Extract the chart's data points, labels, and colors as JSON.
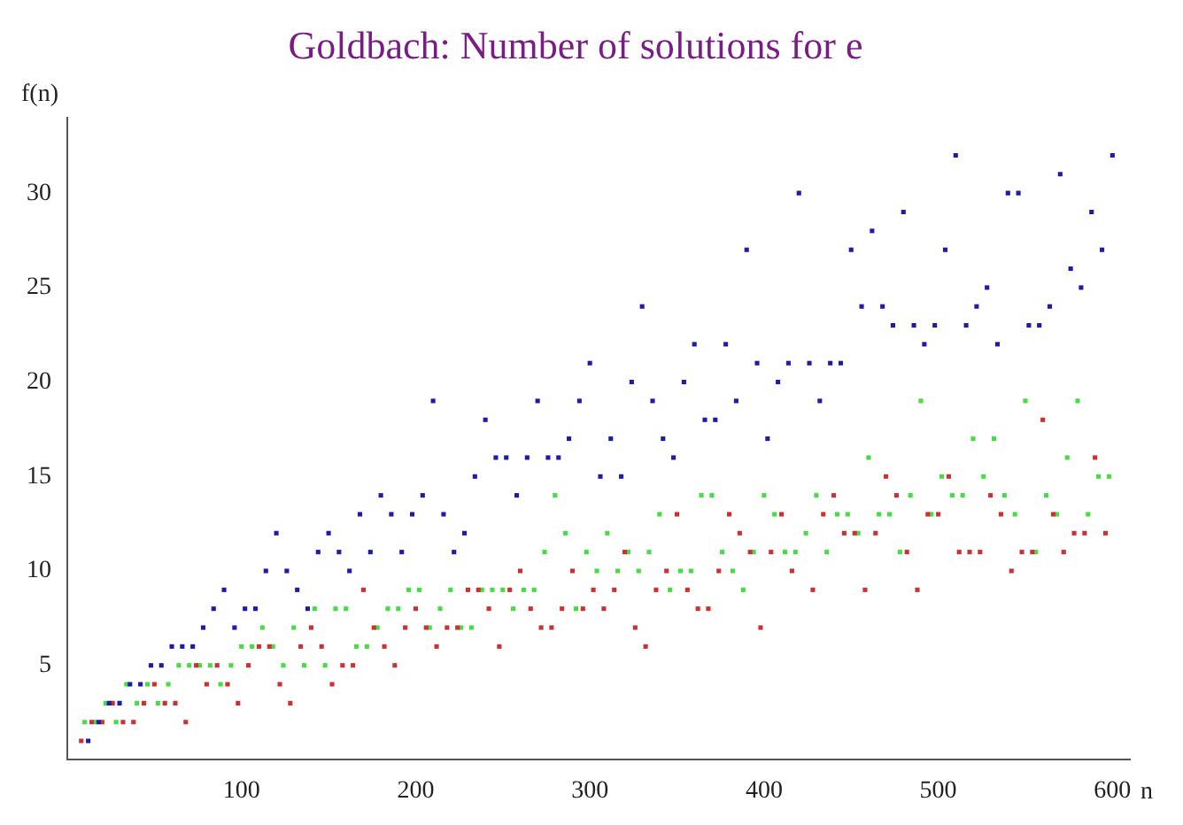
{
  "chart_data": {
    "type": "scatter",
    "title": "Goldbach: Number of solutions for e",
    "xlabel": "n",
    "ylabel": "f(n)",
    "xlim": [
      0,
      610
    ],
    "ylim": [
      0,
      34
    ],
    "xticks": [
      100,
      200,
      300,
      400,
      500,
      600
    ],
    "yticks": [
      5,
      10,
      15,
      20,
      25,
      30
    ],
    "grid": false,
    "legend": false,
    "marker": "square",
    "series": [
      {
        "color": "#1c1ca8",
        "x": [
          12,
          18,
          24,
          30,
          36,
          42,
          48,
          54,
          60,
          66,
          72,
          78,
          84,
          90,
          96,
          102,
          108,
          114,
          120,
          126,
          132,
          138,
          144,
          150,
          156,
          162,
          168,
          174,
          180,
          186,
          192,
          198,
          204,
          210,
          216,
          222,
          228,
          234,
          240,
          246,
          252,
          258,
          264,
          270,
          276,
          282,
          288,
          294,
          300,
          306,
          312,
          318,
          324,
          330,
          336,
          342,
          348,
          354,
          360,
          366,
          372,
          378,
          384,
          390,
          396,
          402,
          408,
          414,
          420,
          426,
          432,
          438,
          444,
          450,
          456,
          462,
          468,
          474,
          480,
          486,
          492,
          498,
          504,
          510,
          516,
          522,
          528,
          534,
          540,
          546,
          552,
          558,
          564,
          570,
          576,
          582,
          588,
          594,
          600
        ],
        "values": [
          1,
          2,
          3,
          3,
          4,
          4,
          5,
          5,
          6,
          6,
          6,
          7,
          8,
          9,
          7,
          8,
          8,
          10,
          12,
          10,
          9,
          8,
          11,
          12,
          11,
          10,
          13,
          11,
          14,
          13,
          11,
          13,
          14,
          19,
          13,
          11,
          12,
          15,
          18,
          16,
          16,
          14,
          16,
          19,
          16,
          16,
          17,
          19,
          21,
          15,
          17,
          15,
          20,
          24,
          19,
          17,
          16,
          20,
          22,
          18,
          18,
          22,
          19,
          27,
          21,
          17,
          20,
          21,
          30,
          21,
          19,
          21,
          21,
          27,
          24,
          28,
          24,
          23,
          29,
          23,
          22,
          23,
          27,
          32,
          23,
          24,
          25,
          22,
          30,
          30,
          23,
          23,
          24,
          31,
          26,
          25,
          29,
          27,
          32
        ]
      },
      {
        "color": "#cc3030",
        "x": [
          8,
          14,
          20,
          26,
          32,
          38,
          44,
          50,
          56,
          62,
          68,
          74,
          80,
          86,
          92,
          98,
          104,
          110,
          116,
          122,
          128,
          134,
          140,
          146,
          152,
          158,
          164,
          170,
          176,
          182,
          188,
          194,
          200,
          206,
          212,
          218,
          224,
          230,
          236,
          242,
          248,
          254,
          260,
          266,
          272,
          278,
          284,
          290,
          296,
          302,
          308,
          314,
          320,
          326,
          332,
          338,
          344,
          350,
          356,
          362,
          368,
          374,
          380,
          386,
          392,
          398,
          404,
          410,
          416,
          428,
          434,
          440,
          446,
          452,
          458,
          464,
          470,
          476,
          482,
          488,
          494,
          500,
          506,
          512,
          518,
          524,
          530,
          536,
          542,
          548,
          554,
          560,
          566,
          572,
          578,
          584,
          590,
          596
        ],
        "values": [
          1,
          2,
          2,
          3,
          2,
          2,
          3,
          4,
          3,
          3,
          2,
          5,
          4,
          5,
          4,
          3,
          5,
          6,
          6,
          4,
          3,
          6,
          7,
          6,
          4,
          5,
          5,
          9,
          7,
          6,
          5,
          7,
          8,
          7,
          6,
          7,
          7,
          9,
          9,
          8,
          6,
          9,
          10,
          8,
          7,
          7,
          8,
          10,
          8,
          9,
          8,
          9,
          11,
          7,
          6,
          9,
          10,
          13,
          9,
          8,
          8,
          10,
          13,
          12,
          11,
          7,
          11,
          13,
          10,
          9,
          13,
          14,
          12,
          12,
          9,
          12,
          15,
          14,
          11,
          9,
          13,
          13,
          15,
          11,
          11,
          11,
          14,
          13,
          10,
          11,
          11,
          18,
          13,
          11,
          12,
          12,
          16,
          12
        ]
      },
      {
        "color": "#44dd44",
        "x": [
          10,
          16,
          22,
          28,
          34,
          40,
          46,
          52,
          58,
          64,
          70,
          76,
          82,
          88,
          94,
          100,
          106,
          112,
          118,
          124,
          130,
          136,
          142,
          148,
          154,
          160,
          166,
          172,
          178,
          184,
          190,
          196,
          202,
          208,
          214,
          220,
          226,
          232,
          238,
          244,
          250,
          256,
          262,
          268,
          274,
          280,
          286,
          292,
          298,
          304,
          310,
          316,
          322,
          328,
          334,
          340,
          346,
          352,
          358,
          364,
          370,
          376,
          382,
          388,
          394,
          400,
          406,
          412,
          418,
          424,
          430,
          436,
          442,
          448,
          454,
          460,
          466,
          472,
          478,
          484,
          490,
          496,
          502,
          508,
          514,
          520,
          526,
          532,
          538,
          544,
          550,
          556,
          562,
          568,
          574,
          580,
          586,
          592,
          598
        ],
        "values": [
          2,
          2,
          3,
          2,
          4,
          3,
          4,
          3,
          4,
          5,
          5,
          5,
          5,
          4,
          5,
          6,
          6,
          7,
          6,
          5,
          7,
          5,
          8,
          5,
          8,
          8,
          6,
          6,
          7,
          8,
          8,
          9,
          9,
          7,
          8,
          9,
          7,
          7,
          9,
          9,
          9,
          8,
          9,
          9,
          11,
          14,
          12,
          8,
          11,
          10,
          12,
          10,
          11,
          10,
          11,
          13,
          9,
          10,
          10,
          14,
          14,
          11,
          10,
          9,
          11,
          14,
          13,
          11,
          11,
          12,
          14,
          11,
          13,
          13,
          12,
          16,
          13,
          13,
          11,
          14,
          19,
          13,
          15,
          14,
          14,
          17,
          15,
          17,
          14,
          13,
          19,
          11,
          14,
          13,
          16,
          19,
          13,
          15,
          15
        ]
      }
    ]
  }
}
